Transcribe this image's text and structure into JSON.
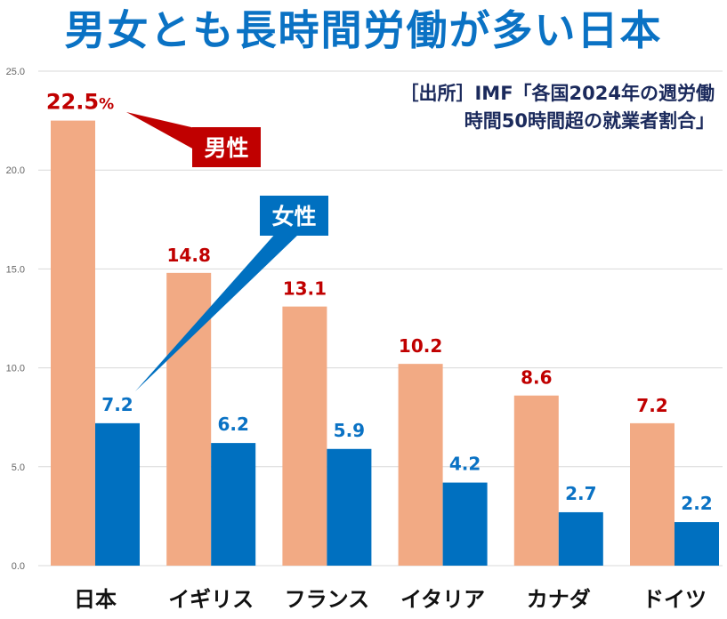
{
  "title": "男女とも長時間労働が多い日本",
  "source": {
    "line1": "［出所］IMF「各国2024年の週労働",
    "line2": "時間50時間超の就業者割合」"
  },
  "colors": {
    "male": "#f2aa84",
    "female": "#0070c0",
    "male_label": "#c00000",
    "female_label": "#0a72c4",
    "title": "#0a72c4",
    "gridline": "#d9d9d9"
  },
  "callouts": {
    "male": "男性",
    "female": "女性",
    "first_value_suffix": "%"
  },
  "chart_data": {
    "type": "bar",
    "title": "男女とも長時間労働が多い日本",
    "xlabel": "",
    "ylabel": "",
    "ylim": [
      0,
      25
    ],
    "yticks": [
      0,
      5,
      10,
      15,
      20,
      25
    ],
    "ytick_labels": [
      "0.0",
      "5.0",
      "10.0",
      "15.0",
      "20.0",
      "25.0"
    ],
    "grid": true,
    "categories": [
      "日本",
      "イギリス",
      "フランス",
      "イタリア",
      "カナダ",
      "ドイツ"
    ],
    "series": [
      {
        "name": "男性",
        "values": [
          22.5,
          14.8,
          13.1,
          10.2,
          8.6,
          7.2
        ],
        "labels": [
          "22.5",
          "14.8",
          "13.1",
          "10.2",
          "8.6",
          "7.2"
        ]
      },
      {
        "name": "女性",
        "values": [
          7.2,
          6.2,
          5.9,
          4.2,
          2.7,
          2.2
        ],
        "labels": [
          "7.2",
          "6.2",
          "5.9",
          "4.2",
          "2.7",
          "2.2"
        ]
      }
    ],
    "legend": "callouts (男性 top-center, 女性 center)",
    "source": "IMF「各国2024年の週労働時間50時間超の就業者割合」"
  }
}
